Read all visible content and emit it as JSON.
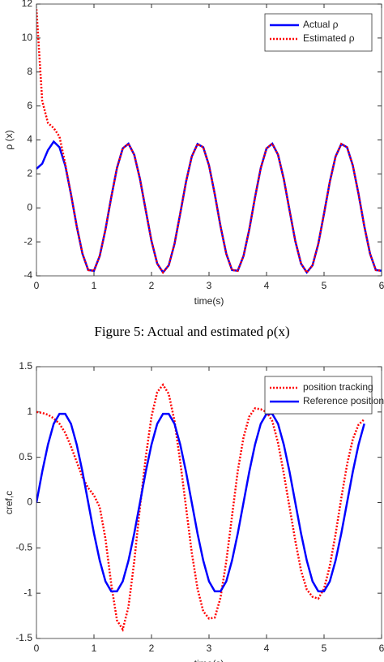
{
  "chart_data": [
    {
      "type": "line",
      "ylabel": "ρ (x)",
      "xlabel": "time(s)",
      "caption": "Figure 5: Actual and estimated ρ(x)",
      "xlim": [
        0,
        6
      ],
      "xticks": [
        0,
        1,
        2,
        3,
        4,
        5,
        6
      ],
      "ylim": [
        -4,
        12
      ],
      "yticks": [
        -4,
        -2,
        0,
        2,
        4,
        6,
        8,
        10,
        12
      ],
      "legend": "upper right",
      "x": [
        0,
        0.1,
        0.2,
        0.3,
        0.4,
        0.5,
        0.6,
        0.7,
        0.8,
        0.9,
        1.0,
        1.1,
        1.2,
        1.3,
        1.4,
        1.5,
        1.6,
        1.7,
        1.8,
        1.9,
        2.0,
        2.1,
        2.2,
        2.3,
        2.4,
        2.5,
        2.6,
        2.7,
        2.8,
        2.9,
        3.0,
        3.1,
        3.2,
        3.3,
        3.4,
        3.5,
        3.6,
        3.7,
        3.8,
        3.9,
        4.0,
        4.1,
        4.2,
        4.3,
        4.4,
        4.5,
        4.6,
        4.7,
        4.8,
        4.9,
        5.0,
        5.1,
        5.2,
        5.3,
        5.4,
        5.5,
        5.6,
        5.7,
        5.8,
        5.9,
        6.0
      ],
      "series": [
        {
          "name": "Actual ρ",
          "color": "#0000ff",
          "style": "solid",
          "values": [
            2.3,
            2.6,
            3.4,
            3.9,
            3.57,
            2.5,
            0.81,
            -1.08,
            -2.7,
            -3.66,
            -3.7,
            -2.83,
            -1.27,
            0.62,
            2.35,
            3.5,
            3.78,
            3.13,
            1.7,
            -0.14,
            -1.95,
            -3.28,
            -3.8,
            -3.38,
            -2.12,
            -0.33,
            1.53,
            3.02,
            3.76,
            3.57,
            2.5,
            0.81,
            -1.08,
            -2.7,
            -3.66,
            -3.7,
            -2.83,
            -1.27,
            0.62,
            2.35,
            3.5,
            3.78,
            3.13,
            1.7,
            -0.14,
            -1.95,
            -3.28,
            -3.8,
            -3.38,
            -2.12,
            -0.33,
            1.53,
            3.02,
            3.76,
            3.57,
            2.5,
            0.81,
            -1.08,
            -2.7,
            -3.66,
            -3.7
          ]
        },
        {
          "name": "Estimated ρ",
          "color": "#ff0000",
          "style": "dotted",
          "values": [
            11.7,
            6.3,
            5.0,
            4.7,
            4.2,
            2.6,
            0.81,
            -1.08,
            -2.7,
            -3.66,
            -3.7,
            -2.83,
            -1.27,
            0.62,
            2.35,
            3.5,
            3.78,
            3.13,
            1.7,
            -0.14,
            -1.95,
            -3.28,
            -3.8,
            -3.38,
            -2.12,
            -0.33,
            1.53,
            3.02,
            3.76,
            3.57,
            2.5,
            0.81,
            -1.08,
            -2.7,
            -3.66,
            -3.7,
            -2.83,
            -1.27,
            0.62,
            2.35,
            3.5,
            3.78,
            3.13,
            1.7,
            -0.14,
            -1.95,
            -3.28,
            -3.8,
            -3.38,
            -2.12,
            -0.33,
            1.53,
            3.02,
            3.76,
            3.57,
            2.5,
            0.81,
            -1.08,
            -2.7,
            -3.66,
            -3.7
          ]
        }
      ]
    },
    {
      "type": "line",
      "ylabel": "cref,c",
      "xlabel": "time(s)",
      "xlim": [
        0,
        6
      ],
      "xticks": [
        0,
        1,
        2,
        3,
        4,
        5,
        6
      ],
      "ylim": [
        -1.5,
        1.5
      ],
      "yticks": [
        -1.5,
        -1,
        -0.5,
        0,
        0.5,
        1,
        1.5
      ],
      "legend": "upper right",
      "x": [
        0,
        0.1,
        0.2,
        0.3,
        0.4,
        0.5,
        0.6,
        0.7,
        0.8,
        0.9,
        1.0,
        1.1,
        1.2,
        1.3,
        1.4,
        1.5,
        1.6,
        1.7,
        1.8,
        1.9,
        2.0,
        2.1,
        2.2,
        2.3,
        2.4,
        2.5,
        2.6,
        2.7,
        2.8,
        2.9,
        3.0,
        3.1,
        3.2,
        3.3,
        3.4,
        3.5,
        3.6,
        3.7,
        3.8,
        3.9,
        4.0,
        4.1,
        4.2,
        4.3,
        4.4,
        4.5,
        4.6,
        4.7,
        4.8,
        4.9,
        5.0,
        5.1,
        5.2,
        5.3,
        5.4,
        5.5,
        5.6,
        5.7
      ],
      "series": [
        {
          "name": "position tracking",
          "color": "#ff0000",
          "style": "dotted",
          "values": [
            1.0,
            0.99,
            0.97,
            0.93,
            0.87,
            0.77,
            0.62,
            0.45,
            0.28,
            0.16,
            0.08,
            -0.05,
            -0.4,
            -0.9,
            -1.3,
            -1.4,
            -1.15,
            -0.65,
            -0.05,
            0.5,
            0.95,
            1.22,
            1.3,
            1.2,
            0.9,
            0.45,
            -0.05,
            -0.55,
            -0.95,
            -1.2,
            -1.28,
            -1.27,
            -1.05,
            -0.65,
            -0.15,
            0.35,
            0.72,
            0.95,
            1.04,
            1.03,
            1.0,
            0.9,
            0.66,
            0.32,
            -0.05,
            -0.42,
            -0.75,
            -0.96,
            -1.04,
            -1.06,
            -0.95,
            -0.7,
            -0.35,
            0.05,
            0.42,
            0.7,
            0.86,
            0.92
          ]
        },
        {
          "name": "Reference position",
          "color": "#0000ff",
          "style": "solid",
          "values": [
            0,
            0.34,
            0.64,
            0.87,
            0.98,
            0.98,
            0.87,
            0.64,
            0.34,
            0,
            -0.34,
            -0.64,
            -0.87,
            -0.98,
            -0.98,
            -0.87,
            -0.64,
            -0.34,
            0,
            0.34,
            0.64,
            0.87,
            0.98,
            0.98,
            0.87,
            0.64,
            0.34,
            0,
            -0.34,
            -0.64,
            -0.87,
            -0.98,
            -0.98,
            -0.87,
            -0.64,
            -0.34,
            0,
            0.34,
            0.64,
            0.87,
            0.98,
            0.98,
            0.87,
            0.64,
            0.34,
            0,
            -0.34,
            -0.64,
            -0.87,
            -0.98,
            -0.98,
            -0.87,
            -0.64,
            -0.34,
            0,
            0.34,
            0.64,
            0.87
          ]
        }
      ]
    }
  ]
}
